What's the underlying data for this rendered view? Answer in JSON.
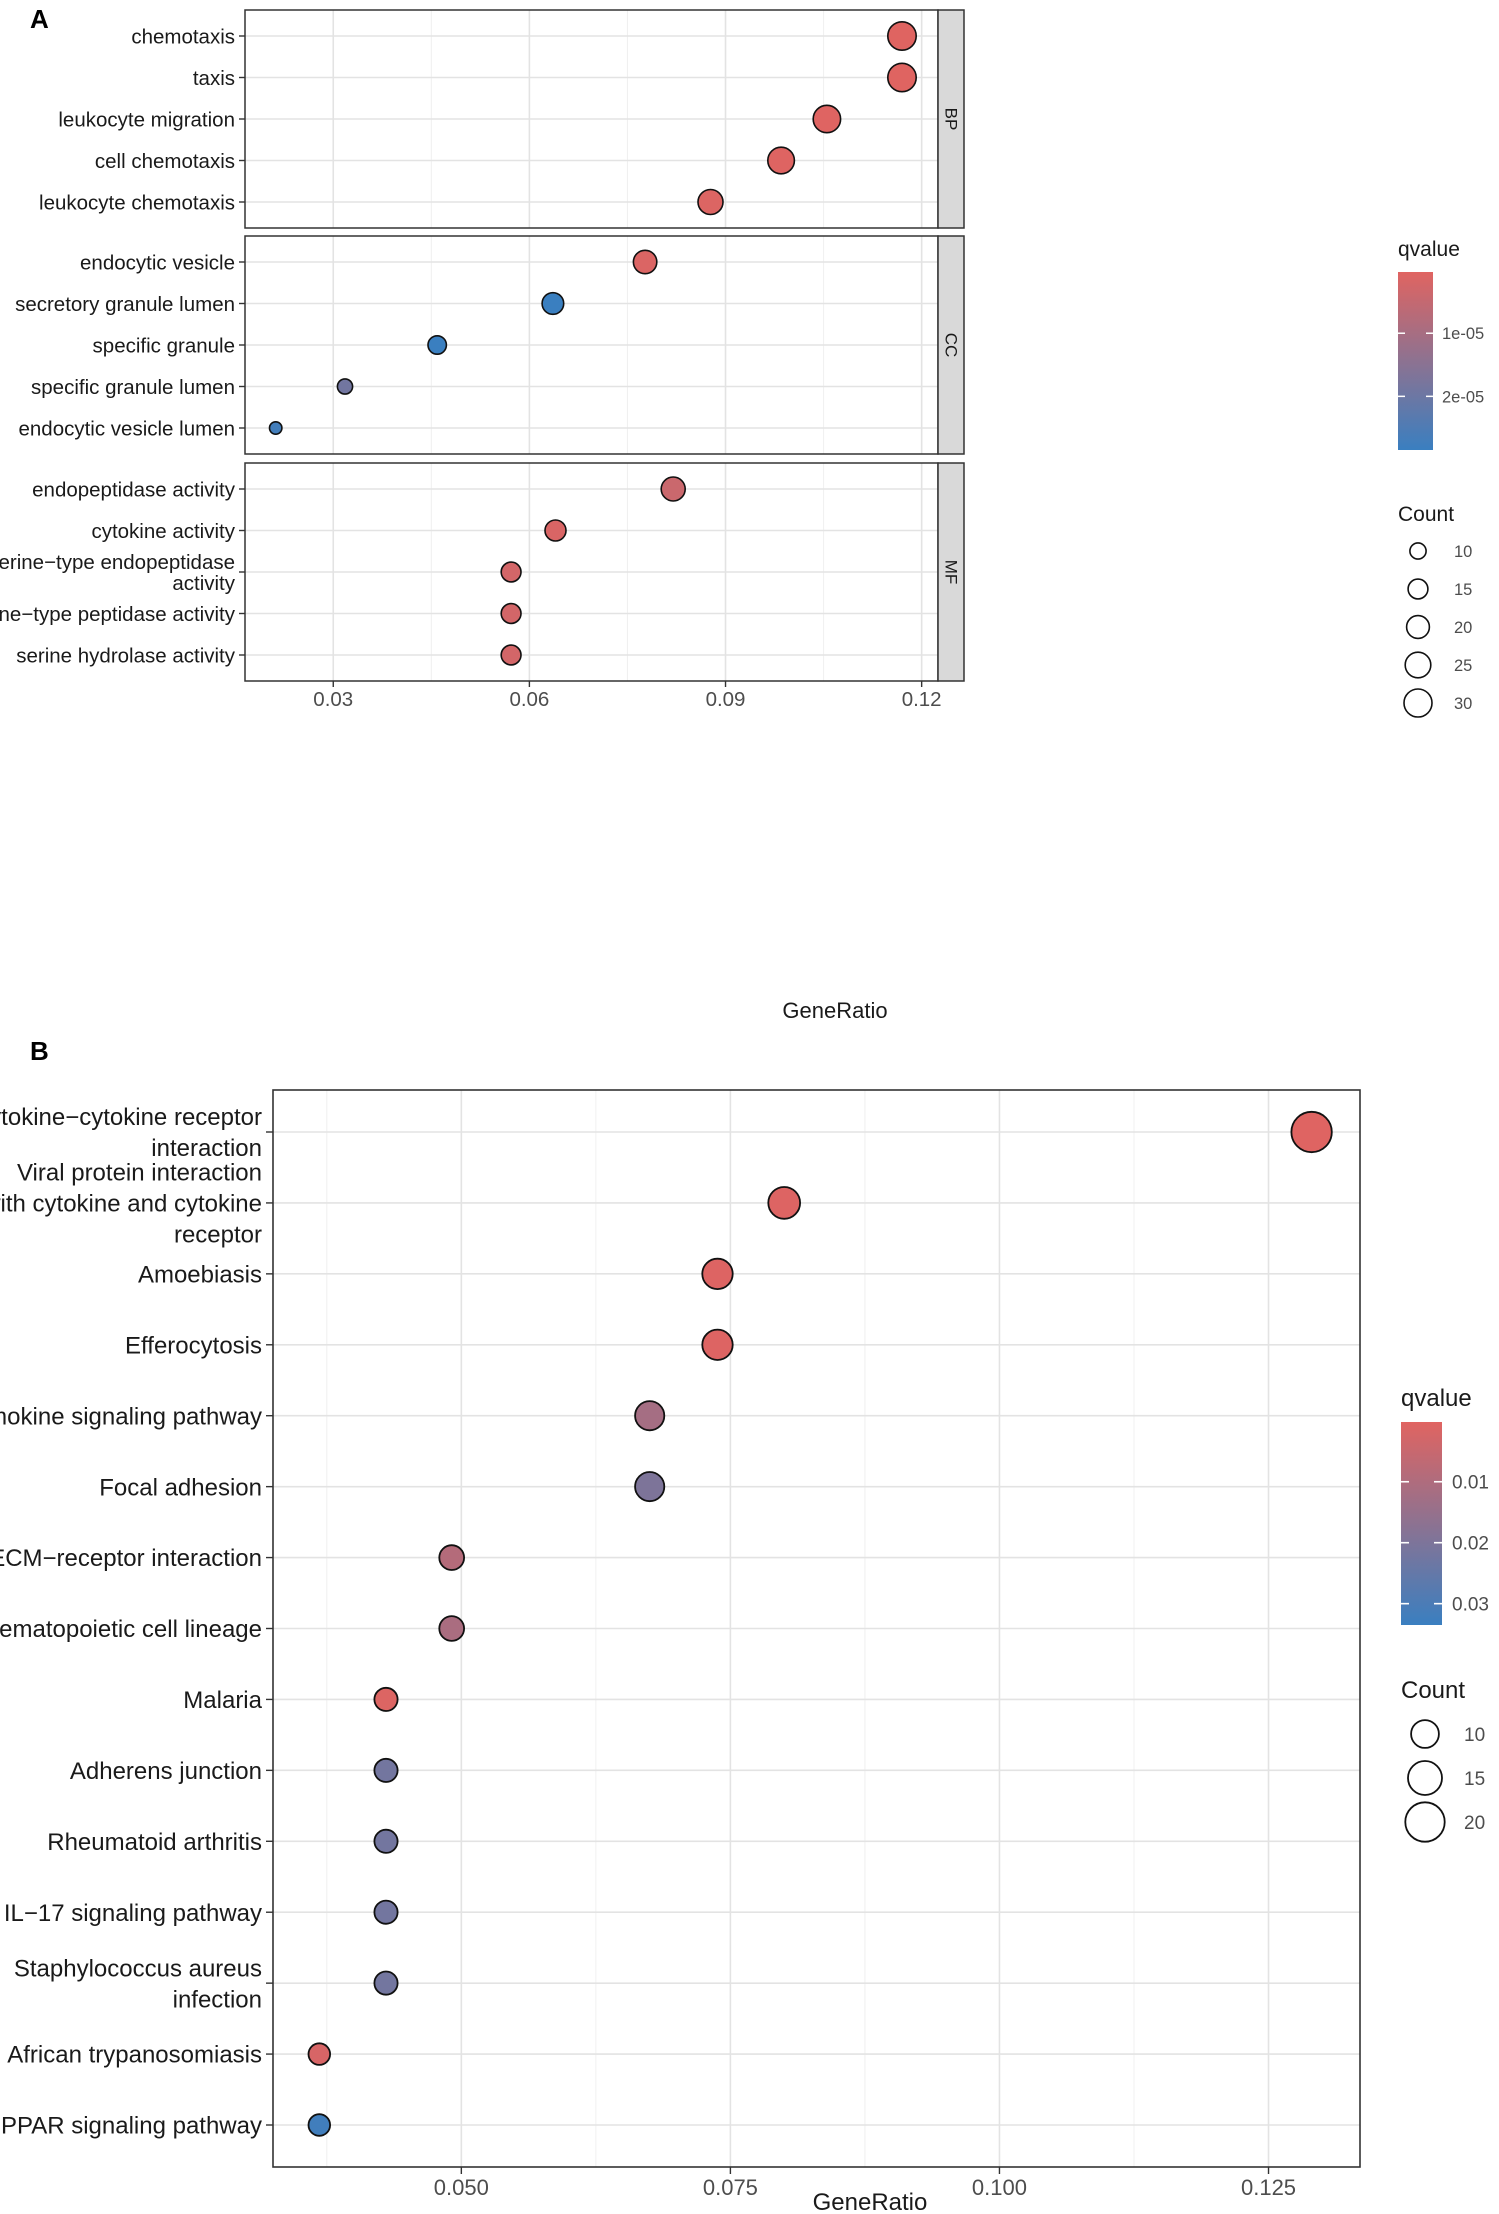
{
  "chart_data": [
    {
      "type": "scatter",
      "panel": "A",
      "xlabel": "GeneRatio",
      "xlim": [
        0.0165,
        0.1225
      ],
      "xticks": [
        0.03,
        0.06,
        0.09,
        0.12
      ],
      "xtick_labels": [
        "0.03",
        "0.06",
        "0.09",
        "0.12"
      ],
      "facets": [
        {
          "label": "BP",
          "terms": [
            "chemotaxis",
            "taxis",
            "leukocyte migration",
            "cell chemotaxis",
            "leukocyte chemotaxis"
          ],
          "gene_ratio": [
            0.117,
            0.117,
            0.1055,
            0.0985,
            0.0877
          ],
          "count": [
            31,
            31,
            29,
            27,
            24
          ],
          "qvalue": [
            4e-07,
            4e-07,
            4.5e-07,
            6e-07,
            1e-06
          ]
        },
        {
          "label": "CC",
          "terms": [
            "endocytic vesicle",
            "secretory granule lumen",
            "specific granule",
            "specific granule lumen",
            "endocytic vesicle lumen"
          ],
          "gene_ratio": [
            0.0777,
            0.0636,
            0.0459,
            0.0318,
            0.0212
          ],
          "count": [
            21,
            18,
            13,
            9,
            6
          ],
          "qvalue": [
            1.2e-06,
            2.85e-05,
            2.85e-05,
            1.9e-05,
            2.7e-05
          ]
        },
        {
          "label": "MF",
          "terms": [
            "endopeptidase activity",
            "cytokine activity",
            "serine−type endopeptidase activity",
            "serine−type peptidase activity",
            "serine hydrolase activity"
          ],
          "term_lines": [
            [
              "endopeptidase activity"
            ],
            [
              "cytokine activity"
            ],
            [
              "serine−type endopeptidase",
              "activity"
            ],
            [
              "serine−type peptidase activity"
            ],
            [
              "serine hydrolase activity"
            ]
          ],
          "gene_ratio": [
            0.082,
            0.064,
            0.0572,
            0.0572,
            0.0572
          ],
          "count": [
            22,
            17,
            15,
            15,
            15
          ],
          "qvalue": [
            4e-06,
            1.5e-06,
            2.5e-06,
            2.5e-06,
            2.5e-06
          ]
        }
      ],
      "legend_color": {
        "title": "qvalue",
        "tick_labels": [
          "1e-05",
          "2e-05"
        ],
        "tick_values": [
          1e-05,
          2e-05
        ],
        "range": [
          3e-07,
          2.85e-05
        ],
        "low_color": "#e06461",
        "high_color": "#3a7fc0"
      },
      "legend_size": {
        "title": "Count",
        "values": [
          10,
          15,
          20,
          25,
          30
        ],
        "labels": [
          "10",
          "15",
          "20",
          "25",
          "30"
        ]
      }
    },
    {
      "type": "scatter",
      "panel": "B",
      "xlabel": "GeneRatio",
      "xlim": [
        0.0325,
        0.1335
      ],
      "xticks": [
        0.05,
        0.075,
        0.1,
        0.125
      ],
      "xtick_labels": [
        "0.050",
        "0.075",
        "0.100",
        "0.125"
      ],
      "terms": [
        "Cytokine−cytokine receptor interaction",
        "Viral protein interaction with cytokine and cytokine receptor",
        "Amoebiasis",
        "Efferocytosis",
        "Chemokine signaling pathway",
        "Focal adhesion",
        "ECM−receptor interaction",
        "Hematopoietic cell lineage",
        "Malaria",
        "Adherens junction",
        "Rheumatoid arthritis",
        "IL−17 signaling pathway",
        "Staphylococcus aureus infection",
        "African trypanosomiasis",
        "PPAR signaling pathway"
      ],
      "term_lines": [
        [
          "Cytokine−cytokine receptor",
          "interaction"
        ],
        [
          "Viral protein interaction",
          "with cytokine and cytokine",
          "receptor"
        ],
        [
          "Amoebiasis"
        ],
        [
          "Efferocytosis"
        ],
        [
          "Chemokine signaling pathway"
        ],
        [
          "Focal adhesion"
        ],
        [
          "ECM−receptor interaction"
        ],
        [
          "Hematopoietic cell lineage"
        ],
        [
          "Malaria"
        ],
        [
          "Adherens junction"
        ],
        [
          "Rheumatoid arthritis"
        ],
        [
          "IL−17 signaling pathway"
        ],
        [
          "Staphylococcus aureus",
          "infection"
        ],
        [
          "African trypanosomiasis"
        ],
        [
          "PPAR signaling pathway"
        ]
      ],
      "gene_ratio": [
        0.129,
        0.08,
        0.0738,
        0.0738,
        0.0675,
        0.0675,
        0.0491,
        0.0491,
        0.043,
        0.043,
        0.043,
        0.043,
        0.043,
        0.0368,
        0.0368
      ],
      "count": [
        21,
        13,
        12,
        12,
        11,
        11,
        8,
        8,
        7,
        7,
        7,
        7,
        7,
        6,
        6
      ],
      "qvalue": [
        0.0005,
        0.0008,
        0.0008,
        0.0008,
        0.012,
        0.02,
        0.009,
        0.011,
        0.001,
        0.022,
        0.022,
        0.022,
        0.022,
        0.002,
        0.032
      ],
      "legend_color": {
        "title": "qvalue",
        "tick_labels": [
          "0.01",
          "0.02",
          "0.03"
        ],
        "tick_values": [
          0.01,
          0.02,
          0.03
        ],
        "range": [
          0.0002,
          0.0335
        ],
        "low_color": "#e06461",
        "high_color": "#3a7fc0"
      },
      "legend_size": {
        "title": "Count",
        "values": [
          10,
          15,
          20
        ],
        "labels": [
          "10",
          "15",
          "20"
        ]
      }
    }
  ]
}
